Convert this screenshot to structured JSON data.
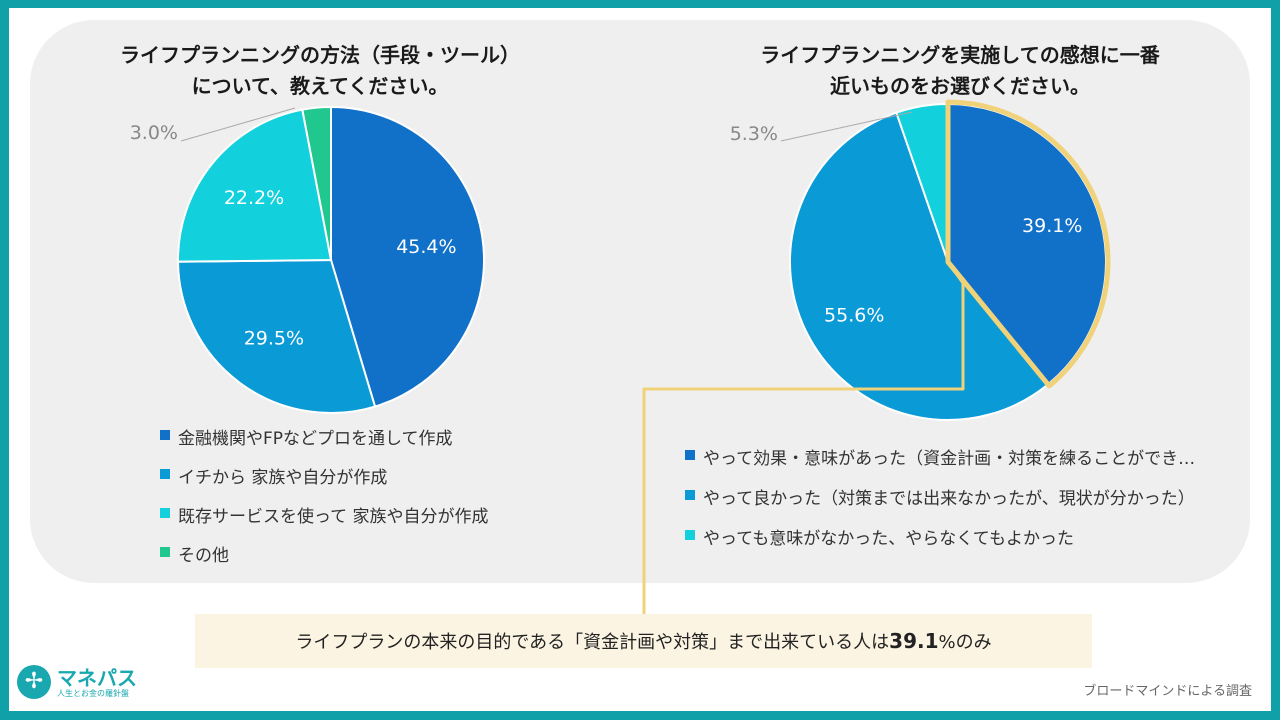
{
  "colors": {
    "frame": "#10a0a8",
    "panel": "#efefef",
    "dark_blue": "#1170c8",
    "mid_blue": "#0a9ad6",
    "cyan": "#12d0dc",
    "green": "#20c890",
    "highlight": "#f0d27a",
    "note_bg": "#fbf4e2"
  },
  "chart_data": [
    {
      "type": "pie",
      "title": "ライフプランニングの方法（手段・ツール）について、教えてください。",
      "title_lines": [
        "ライフプランニングの方法（手段・ツール）",
        "について、教えてください。"
      ],
      "categories": [
        "金融機関やFPなどプロを通して作成",
        "イチから 家族や自分が作成",
        "既存サービスを使って 家族や自分が作成",
        "その他"
      ],
      "values": [
        45.4,
        29.5,
        22.2,
        3.0
      ],
      "labels": [
        "45.4%",
        "29.5%",
        "22.2%",
        "3.0%"
      ],
      "colors": [
        "#1170c8",
        "#0a9ad6",
        "#12d0dc",
        "#20c890"
      ],
      "legend_position": "bottom"
    },
    {
      "type": "pie",
      "title": "ライフプランニングを実施しての感想に一番近いものをお選びください。",
      "title_lines": [
        "ライフプランニングを実施しての感想に一番",
        "近いものをお選びください。"
      ],
      "categories": [
        "やって効果・意味があった（資金計画・対策を練ることができ…",
        "やって良かった（対策までは出来なかったが、現状が分かった）",
        "やっても意味がなかった、やらなくてもよかった"
      ],
      "values": [
        39.1,
        55.6,
        5.3
      ],
      "labels": [
        "39.1%",
        "55.6%",
        "5.3%"
      ],
      "colors": [
        "#1170c8",
        "#0a9ad6",
        "#12d0dc"
      ],
      "highlighted_category": "やって効果・意味があった（資金計画・対策を練ることができ…",
      "legend_position": "bottom"
    }
  ],
  "note": {
    "prefix": "ライフプランの本来の目的である「資金計画や対策」まで出来ている人は",
    "value": "39.1",
    "suffix": "%のみ"
  },
  "logo": {
    "mark": "✢",
    "name": "マネパス",
    "tagline": "人生とお金の羅針盤"
  },
  "source": "ブロードマインドによる調査"
}
